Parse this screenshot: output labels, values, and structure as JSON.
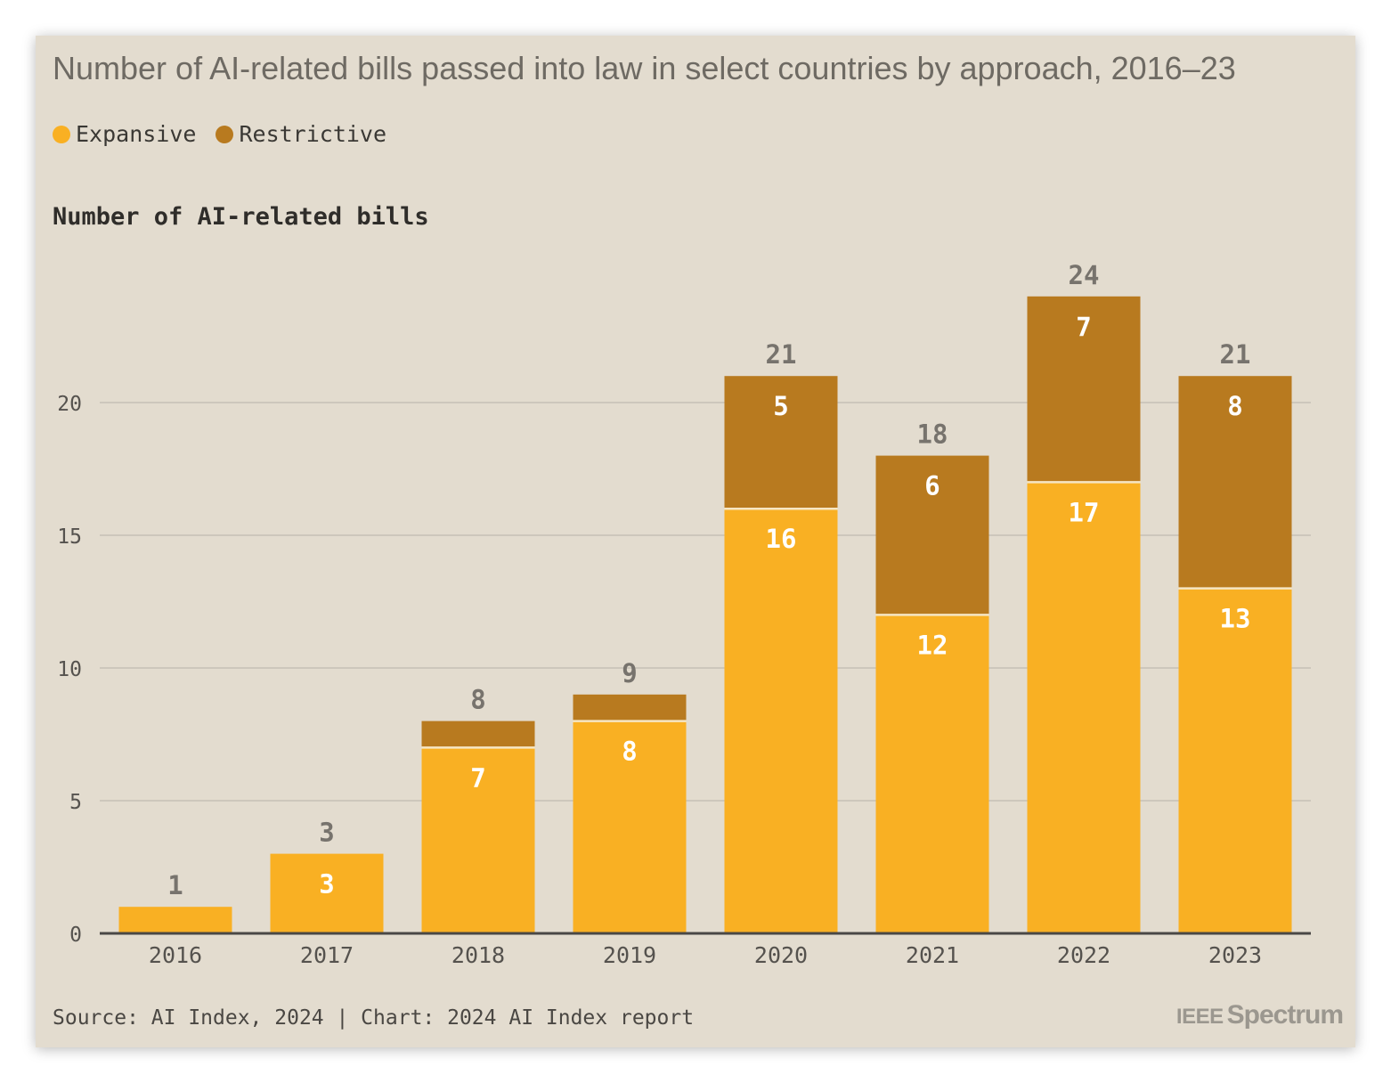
{
  "title": "Number of AI-related bills passed into law in select countries by approach, 2016–23",
  "legend": [
    {
      "label": "Expansive",
      "color": "#f9b023"
    },
    {
      "label": "Restrictive",
      "color": "#b87a1f"
    }
  ],
  "source": "Source: AI Index, 2024 | Chart: 2024 AI Index report",
  "logo": {
    "part1": "IEEE",
    "part2": "Spectrum"
  },
  "colors": {
    "expansive": "#f9b023",
    "restrictive": "#b87a1f",
    "grid": "#cdc7bc",
    "axis": "#4a4846",
    "tick_text": "#55524e",
    "total_text": "#77736d",
    "inner_text": "#ffffff"
  },
  "chart_data": {
    "type": "bar",
    "stacked": true,
    "title": "Number of AI-related bills passed into law in select countries by approach, 2016–23",
    "ylabel": "Number of AI-related bills",
    "xlabel": "",
    "categories": [
      "2016",
      "2017",
      "2018",
      "2019",
      "2020",
      "2021",
      "2022",
      "2023"
    ],
    "series": [
      {
        "name": "Expansive",
        "values": [
          1,
          3,
          7,
          8,
          16,
          12,
          17,
          13
        ]
      },
      {
        "name": "Restrictive",
        "values": [
          0,
          0,
          1,
          1,
          5,
          6,
          7,
          8
        ]
      }
    ],
    "totals": [
      1,
      3,
      8,
      9,
      21,
      18,
      24,
      21
    ],
    "segment_labels": {
      "Expansive": [
        "",
        "3",
        "7",
        "8",
        "16",
        "12",
        "17",
        "13"
      ],
      "Restrictive": [
        "",
        "",
        "",
        "",
        "5",
        "6",
        "7",
        "8"
      ]
    },
    "yticks": [
      0,
      5,
      10,
      15,
      20
    ],
    "ylim": [
      0,
      24
    ],
    "grid": true,
    "legend_position": "top-left"
  }
}
